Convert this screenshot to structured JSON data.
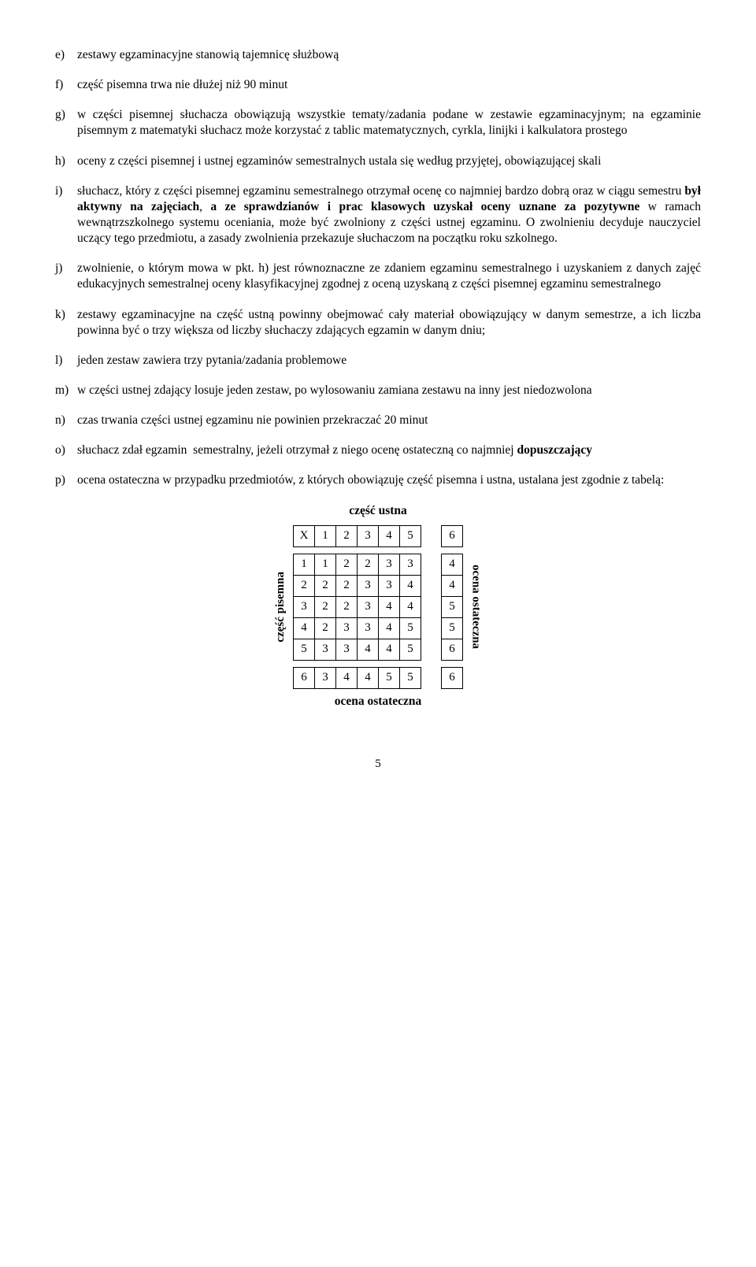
{
  "items": [
    {
      "marker": "e)",
      "text": "zestawy egzaminacyjne stanowią tajemnicę służbową"
    },
    {
      "marker": "f)",
      "text": "część pisemna trwa nie dłużej niż 90 minut"
    },
    {
      "marker": "g)",
      "text": "w części pisemnej słuchacza obowiązują wszystkie tematy/zadania podane w zestawie egzaminacyjnym; na egzaminie pisemnym z matematyki słuchacz może korzystać z tablic matematycznych, cyrkla, linijki i kalkulatora prostego"
    },
    {
      "marker": "h)",
      "text": "oceny z części pisemnej i ustnej egzaminów semestralnych ustala się według przyjętej, obowiązującej skali"
    },
    {
      "marker": "i)",
      "html": "słuchacz, który z części pisemnej egzaminu semestralnego otrzymał ocenę co najmniej bardzo dobrą oraz w ciągu semestru <span class=\"bold\">był aktywny na zajęciach</span>, <span class=\"bold\">a ze sprawdzianów i prac klasowych uzyskał oceny uznane za pozytywne</span> w ramach wewnątrzszkolnego systemu oceniania, może być zwolniony z części ustnej egzaminu. O zwolnieniu decyduje nauczyciel uczący tego przedmiotu, a zasady zwolnienia przekazuje słuchaczom na początku roku szkolnego."
    },
    {
      "marker": "j)",
      "text": "zwolnienie, o którym mowa w pkt. h) jest równoznaczne ze zdaniem egzaminu semestralnego i uzyskaniem z danych zajęć edukacyjnych semestralnej oceny klasyfikacyjnej zgodnej z oceną uzyskaną z części pisemnej egzaminu semestralnego"
    },
    {
      "marker": "k)",
      "text": "zestawy egzaminacyjne na część ustną powinny obejmować cały materiał obowiązujący w danym semestrze, a ich liczba powinna być o trzy większa od liczby słuchaczy zdających egzamin w danym dniu;"
    },
    {
      "marker": "l)",
      "text": "jeden zestaw zawiera trzy pytania/zadania problemowe"
    },
    {
      "marker": "m)",
      "text": "w części ustnej zdający losuje jeden zestaw, po wylosowaniu zamiana zestawu na inny jest niedozwolona"
    },
    {
      "marker": "n)",
      "text": "czas trwania części ustnej egzaminu nie powinien przekraczać 20 minut"
    },
    {
      "marker": "o)",
      "html": "słuchacz zdał egzamin &nbsp;semestralny, jeżeli otrzymał z niego ocenę ostateczną co najmniej <span class=\"bold\">dopuszczający</span>"
    },
    {
      "marker": "p)",
      "text": "ocena ostateczna w przypadku przedmiotów, z których obowiązuję część pisemna i ustna, ustalana jest zgodnie z tabelą:"
    }
  ],
  "table": {
    "label_top": "część ustna",
    "label_left": "część pisemna",
    "label_right": "ocena ostateczna",
    "label_bottom": "ocena ostateczna",
    "header_row": [
      "X",
      "1",
      "2",
      "3",
      "4",
      "5",
      "6"
    ],
    "rows": [
      [
        "1",
        "1",
        "2",
        "2",
        "3",
        "3",
        "4"
      ],
      [
        "2",
        "2",
        "2",
        "3",
        "3",
        "4",
        "4"
      ],
      [
        "3",
        "2",
        "2",
        "3",
        "4",
        "4",
        "5"
      ],
      [
        "4",
        "2",
        "3",
        "3",
        "4",
        "5",
        "5"
      ],
      [
        "5",
        "3",
        "3",
        "4",
        "4",
        "5",
        "6"
      ],
      [
        "6",
        "3",
        "4",
        "4",
        "5",
        "5",
        "6"
      ]
    ]
  },
  "page_number": "5"
}
